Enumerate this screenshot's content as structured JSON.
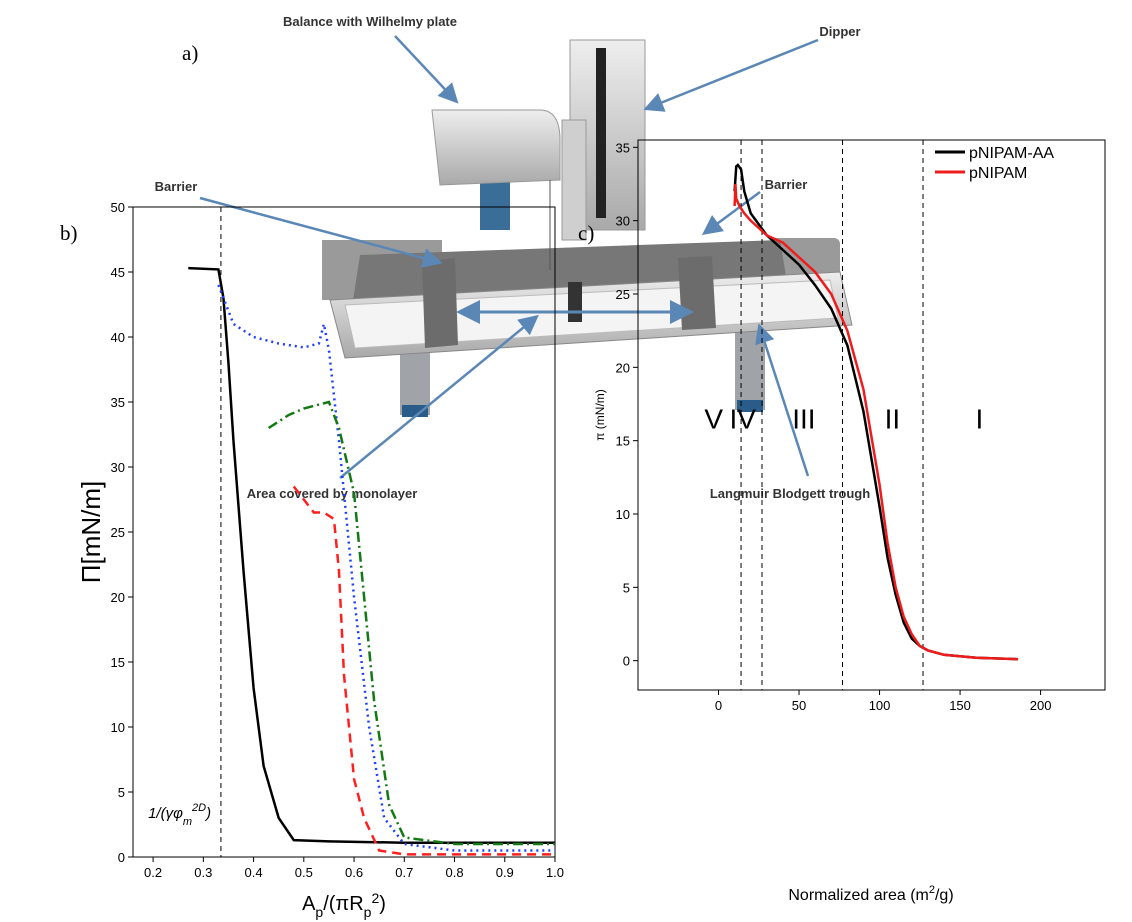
{
  "panel_a": {
    "label": "a)",
    "callouts": [
      "Balance with Wilhelmy plate",
      "Dipper",
      "Barrier",
      "Barrier",
      "Area covered by monolayer",
      "Langmuir Blodgett trough"
    ]
  },
  "chart_data": [
    {
      "type": "line",
      "panel_label": "b)",
      "y_label": "Π[mN/m]",
      "x_label": [
        "A",
        "p",
        "/(πR",
        "p",
        "2",
        ")"
      ],
      "annotation": [
        "1/(γφ",
        "m",
        "2D",
        ")"
      ],
      "xlim": [
        0.16,
        1.0
      ],
      "ylim": [
        0,
        50
      ],
      "xticks": [
        0.2,
        0.3,
        0.4,
        0.5,
        0.6,
        0.7,
        0.8,
        0.9,
        {
          "value": 1,
          "label": "1.0"
        }
      ],
      "yticks": [
        0,
        5,
        10,
        15,
        20,
        25,
        30,
        35,
        40,
        45,
        50
      ],
      "vlines": [
        0.335
      ],
      "series": [
        {
          "color": "#000000",
          "dash": "solid",
          "x": [
            0.27,
            0.33,
            0.34,
            0.35,
            0.36,
            0.38,
            0.4,
            0.42,
            0.45,
            0.48,
            0.55,
            0.7,
            1.0
          ],
          "values": [
            45.3,
            45.2,
            43,
            38,
            32,
            22,
            13,
            7,
            3,
            1.3,
            1.2,
            1.1,
            1.1
          ]
        },
        {
          "color": "#1f3fff",
          "dash": "dotted",
          "x": [
            0.33,
            0.36,
            0.4,
            0.45,
            0.5,
            0.53,
            0.54,
            0.55,
            0.57,
            0.6,
            0.63,
            0.66,
            0.7,
            0.8,
            1.0
          ],
          "values": [
            44,
            41,
            40,
            39.5,
            39.2,
            39.5,
            41,
            39,
            32,
            20,
            10,
            3,
            1,
            0.5,
            0.5
          ]
        },
        {
          "color": "#137a13",
          "dash": "dashdot",
          "x": [
            0.43,
            0.47,
            0.5,
            0.55,
            0.57,
            0.6,
            0.62,
            0.64,
            0.67,
            0.7,
            0.8,
            1.0
          ],
          "values": [
            33,
            34,
            34.5,
            35,
            33,
            28,
            20,
            12,
            4,
            1.5,
            1,
            1
          ]
        },
        {
          "color": "#ff1f1f",
          "dash": "dashed",
          "x": [
            0.48,
            0.5,
            0.52,
            0.54,
            0.56,
            0.57,
            0.58,
            0.6,
            0.62,
            0.65,
            0.7,
            1.0
          ],
          "values": [
            28.5,
            27.5,
            26.5,
            26.5,
            26,
            22,
            14,
            6,
            3,
            0.5,
            0.2,
            0.2
          ]
        }
      ]
    },
    {
      "type": "line",
      "panel_label": "c)",
      "y_label": "π (mN/m)",
      "x_label": [
        "Normalized area (m",
        "2",
        "/g)"
      ],
      "xlim": [
        -50,
        240
      ],
      "ylim": [
        -2,
        35.5
      ],
      "xticks": [
        0,
        50,
        100,
        150,
        200
      ],
      "yticks": [
        0,
        5,
        10,
        15,
        20,
        25,
        30,
        35
      ],
      "vlines": [
        14,
        27,
        77,
        127
      ],
      "regions": [
        {
          "label": "V",
          "x": -3,
          "y": 16.5
        },
        {
          "label": "IV",
          "x": 15,
          "y": 16.5
        },
        {
          "label": "III",
          "x": 53,
          "y": 16.5
        },
        {
          "label": "II",
          "x": 108,
          "y": 16.5
        },
        {
          "label": "I",
          "x": 162,
          "y": 16.5
        }
      ],
      "legend": "upper right",
      "series": [
        {
          "name": "pNIPAM-AA",
          "color": "#000000",
          "dash": "solid",
          "x": [
            10,
            11,
            12,
            14,
            16,
            20,
            30,
            40,
            50,
            60,
            70,
            80,
            90,
            100,
            105,
            110,
            115,
            120,
            125,
            130,
            140,
            160,
            186
          ],
          "values": [
            32,
            33.7,
            33.8,
            33.5,
            32,
            30.5,
            29,
            28,
            27,
            25.6,
            24,
            21.5,
            17,
            10.5,
            7,
            4.5,
            2.6,
            1.5,
            1,
            0.7,
            0.4,
            0.2,
            0.1
          ]
        },
        {
          "name": "pNIPAM",
          "color": "#ee1c1c",
          "dash": "solid",
          "x": [
            10,
            10.5,
            11,
            13,
            16,
            20,
            30,
            40,
            50,
            60,
            70,
            80,
            90,
            100,
            105,
            110,
            115,
            120,
            125,
            130,
            140,
            160,
            186
          ],
          "values": [
            31,
            32.5,
            31.5,
            31,
            30.5,
            30,
            29,
            28.5,
            27.5,
            26.5,
            25,
            22.5,
            18.5,
            12,
            8,
            5,
            3,
            1.8,
            1,
            0.7,
            0.4,
            0.2,
            0.1
          ]
        }
      ]
    }
  ]
}
